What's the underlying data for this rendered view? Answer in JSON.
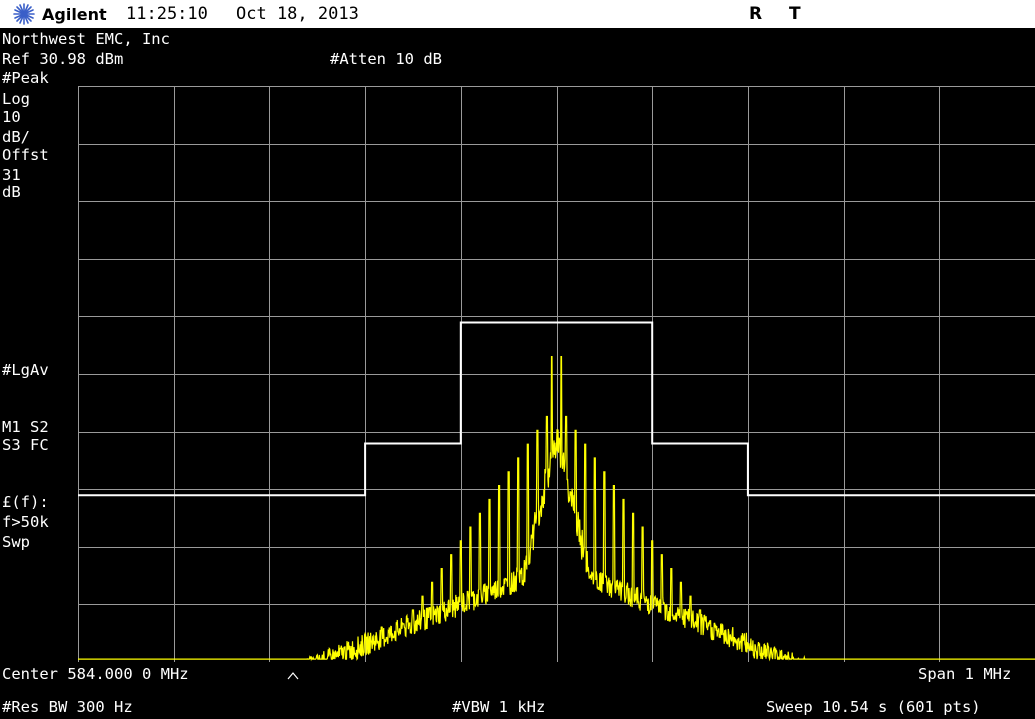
{
  "header": {
    "brand": "Agilent",
    "time": "11:25:10",
    "date": "Oct 18, 2013",
    "flag_r": "R",
    "flag_t": "T"
  },
  "info": {
    "company": "Northwest EMC, Inc",
    "ref_level": "Ref 30.98 dBm",
    "atten": "#Atten 10 dB"
  },
  "side_labels": [
    "#Peak",
    "Log",
    "10",
    "dB/",
    "Offst",
    "31",
    "dB",
    "#LgAv",
    "M1  S2",
    "S3  FC",
    "£(f):",
    "f>50k",
    "Swp"
  ],
  "footer": {
    "center": "Center 584.000 0 MHz",
    "span": "Span 1 MHz",
    "rbw": "#Res BW 300 Hz",
    "vbw": "#VBW 1 kHz",
    "sweep": "Sweep 10.54 s (601 pts)"
  },
  "colors": {
    "trace": "#ffff00",
    "grid": "#9a9a9a",
    "limit_line": "#ffffff",
    "background": "#000000",
    "title_bar": "#ffffff"
  },
  "chart_data": {
    "type": "line",
    "ref_level_dbm": 30.98,
    "scale_db_per_div": 10,
    "y_divisions": 10,
    "x_divisions": 10,
    "center_mhz": 584.0,
    "span_mhz": 1.0,
    "points": 601,
    "limit_mask": {
      "x_offset_khz": [
        -500,
        -200,
        -200,
        -100,
        -100,
        100,
        100,
        200,
        200,
        500
      ],
      "y_dbm": [
        -40,
        -40,
        -31,
        -31,
        -10,
        -10,
        -31,
        -31,
        -40,
        -40
      ]
    },
    "trace_peaks": {
      "x_offset_khz": [
        -5,
        5
      ],
      "y_dbm": [
        -16,
        -16
      ]
    },
    "noise_floor_dbm": -78,
    "spur_spacing_khz": 10
  }
}
